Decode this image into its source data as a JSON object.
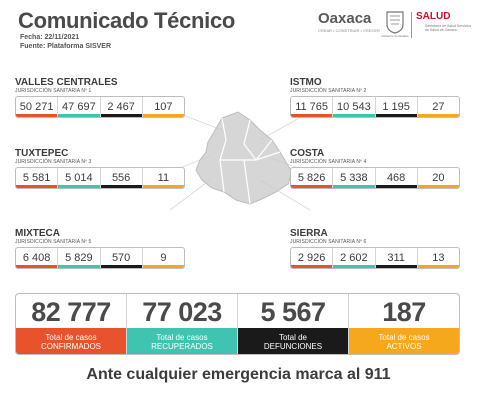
{
  "header": {
    "title": "Comunicado Técnico",
    "date": "Fecha: 22/11/2021",
    "source": "Fuente: Plataforma SISVER"
  },
  "logos": {
    "oaxaca": "Oaxaca",
    "oaxaca_tagline": "CREAR • CONSTRUIR • CRECER",
    "seal_caption": "Gobierno del Estado",
    "salud": "SALUD",
    "salud_sub": "Secretaría de Salud Servicios de Salud de Oaxaca"
  },
  "colors": {
    "confirmados": "#e8522c",
    "recuperados": "#3ec4b0",
    "defunciones": "#1a1a1a",
    "activos": "#f5a81c"
  },
  "regions": [
    {
      "name": "VALLES CENTRALES",
      "jurisdiction": "JURISDICCIÓN SANITARIA Nº 1",
      "values": [
        "50 271",
        "47 697",
        "2 467",
        "107"
      ]
    },
    {
      "name": "ISTMO",
      "jurisdiction": "JURISDICCIÓN SANITARIA Nº 2",
      "values": [
        "11 765",
        "10 543",
        "1 195",
        "27"
      ]
    },
    {
      "name": "TUXTEPEC",
      "jurisdiction": "JURISDICCIÓN SANITARIA Nº 3",
      "values": [
        "5 581",
        "5 014",
        "556",
        "11"
      ]
    },
    {
      "name": "COSTA",
      "jurisdiction": "JURISDICCIÓN SANITARIA Nº 4",
      "values": [
        "5 826",
        "5 338",
        "468",
        "20"
      ]
    },
    {
      "name": "MIXTECA",
      "jurisdiction": "JURISDICCIÓN SANITARIA Nº 5",
      "values": [
        "6 408",
        "5 829",
        "570",
        "9"
      ]
    },
    {
      "name": "SIERRA",
      "jurisdiction": "JURISDICCIÓN SANITARIA Nº 6",
      "values": [
        "2 926",
        "2 602",
        "311",
        "13"
      ]
    }
  ],
  "totals": {
    "confirmados": {
      "value": "82 777",
      "label_1": "Total de casos",
      "label_2": "CONFIRMADOS"
    },
    "recuperados": {
      "value": "77 023",
      "label_1": "Total de casos",
      "label_2": "RECUPERADOS"
    },
    "defunciones": {
      "value": "5 567",
      "label_1": "Total de",
      "label_2": "DEFUNCIONES"
    },
    "activos": {
      "value": "187",
      "label_1": "Total de casos",
      "label_2": "ACTIVOS"
    }
  },
  "footer": "Ante cualquier emergencia marca al 911"
}
